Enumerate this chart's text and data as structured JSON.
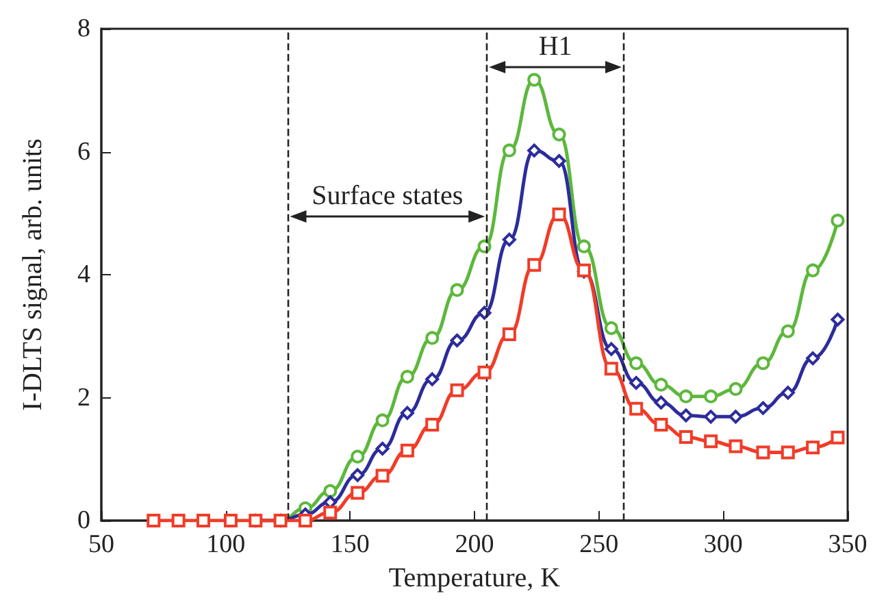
{
  "chart_data": {
    "type": "line",
    "xlabel": "Temperature, K",
    "ylabel": "I-DLTS signal, arb. units",
    "x": [
      71,
      81,
      91,
      102,
      112,
      122,
      132,
      142,
      153,
      163,
      173,
      183,
      193,
      204,
      214,
      224,
      234,
      244,
      255,
      265,
      275,
      285,
      295,
      305,
      316,
      326,
      336,
      346
    ],
    "series": [
      {
        "color": "#5cb83c",
        "marker": "circle",
        "values": [
          null,
          null,
          null,
          null,
          0,
          0,
          0.2,
          0.48,
          1.04,
          1.63,
          2.34,
          2.97,
          3.75,
          4.46,
          6.02,
          7.17,
          6.28,
          4.46,
          3.13,
          2.56,
          2.21,
          2.02,
          2.02,
          2.14,
          2.56,
          3.08,
          4.07,
          4.88
        ]
      },
      {
        "color": "#2c2c9c",
        "marker": "diamond",
        "values": [
          null,
          null,
          null,
          null,
          0,
          0,
          0.1,
          0.3,
          0.74,
          1.17,
          1.75,
          2.3,
          2.93,
          3.38,
          4.57,
          6.02,
          5.85,
          4.05,
          2.79,
          2.24,
          1.92,
          1.71,
          1.69,
          1.69,
          1.83,
          2.08,
          2.64,
          3.27
        ]
      },
      {
        "color": "#f03c28",
        "marker": "square",
        "values": [
          0,
          0,
          0,
          0,
          0,
          0,
          0,
          0.13,
          0.45,
          0.73,
          1.14,
          1.56,
          2.12,
          2.41,
          3.03,
          4.16,
          4.98,
          4.07,
          2.47,
          1.82,
          1.56,
          1.36,
          1.29,
          1.21,
          1.11,
          1.11,
          1.19,
          1.35
        ]
      }
    ],
    "xlim": [
      50,
      350
    ],
    "xticks": [
      50,
      100,
      150,
      200,
      250,
      300,
      350
    ],
    "ylim": [
      0,
      8
    ],
    "yticks": [
      0,
      2,
      4,
      6,
      8
    ],
    "grid": false,
    "line_style": "solid",
    "ref_lines": [
      {
        "axis": "x",
        "value": 125,
        "line_style": "dashed"
      },
      {
        "axis": "x",
        "value": 205,
        "line_style": "dashed"
      },
      {
        "axis": "x",
        "value": 260,
        "line_style": "dashed"
      }
    ],
    "annotations": [
      "Surface states",
      "H1"
    ]
  }
}
